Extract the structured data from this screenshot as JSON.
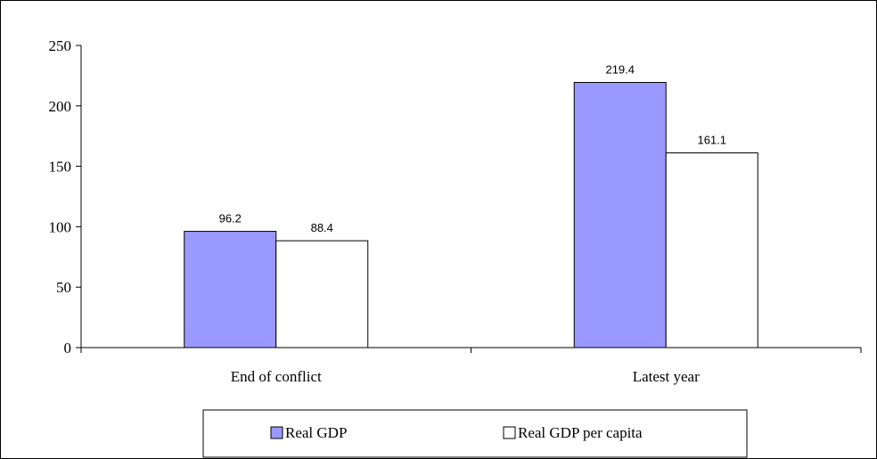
{
  "chart_data": {
    "type": "bar",
    "categories": [
      "End of conflict",
      "Latest year"
    ],
    "series": [
      {
        "name": "Real GDP",
        "values": [
          96.2,
          219.4
        ],
        "color": "#9999ff"
      },
      {
        "name": "Real GDP per capita",
        "values": [
          88.4,
          161.1
        ],
        "color": "#ffffff"
      }
    ],
    "ylim": [
      0,
      250
    ],
    "yticks": [
      0,
      50,
      100,
      150,
      200,
      250
    ],
    "title": "",
    "xlabel": "",
    "ylabel": "",
    "grid": false,
    "legend": "bottom",
    "data_labels": [
      "96.2",
      "88.4",
      "219.4",
      "161.1"
    ]
  }
}
